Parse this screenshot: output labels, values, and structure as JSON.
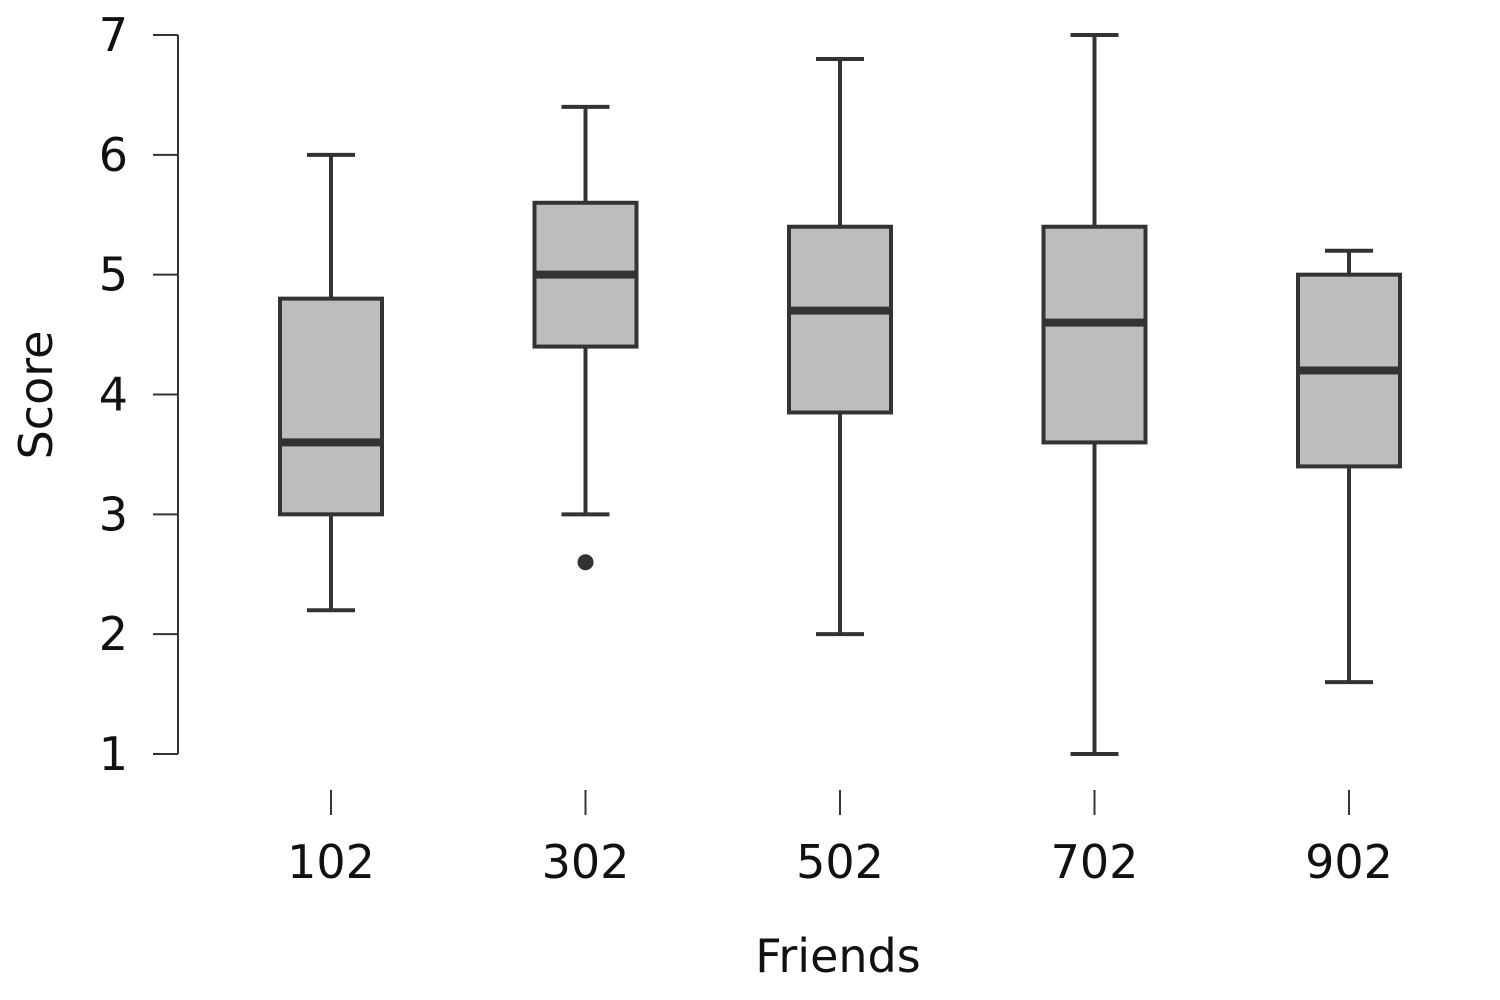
{
  "chart_data": {
    "type": "boxplot",
    "xlabel": "Friends",
    "ylabel": "Score",
    "ylim": [
      1,
      7
    ],
    "yticks": [
      1,
      2,
      3,
      4,
      5,
      6,
      7
    ],
    "grid": false,
    "colors": {
      "box_fill": "#bdbdbd",
      "stroke": "#333333"
    },
    "categories": [
      "102",
      "302",
      "502",
      "702",
      "902"
    ],
    "boxes": [
      {
        "category": "102",
        "whisker_low": 2.2,
        "q1": 3.0,
        "median": 3.6,
        "q3": 4.8,
        "whisker_high": 6.0,
        "outliers": []
      },
      {
        "category": "302",
        "whisker_low": 3.0,
        "q1": 4.4,
        "median": 5.0,
        "q3": 5.6,
        "whisker_high": 6.4,
        "outliers": [
          2.6
        ]
      },
      {
        "category": "502",
        "whisker_low": 2.0,
        "q1": 3.85,
        "median": 4.7,
        "q3": 5.4,
        "whisker_high": 6.8,
        "outliers": []
      },
      {
        "category": "702",
        "whisker_low": 1.0,
        "q1": 3.6,
        "median": 4.6,
        "q3": 5.4,
        "whisker_high": 7.0,
        "outliers": []
      },
      {
        "category": "902",
        "whisker_low": 1.6,
        "q1": 3.4,
        "median": 4.2,
        "q3": 5.0,
        "whisker_high": 5.2,
        "outliers": []
      }
    ]
  }
}
